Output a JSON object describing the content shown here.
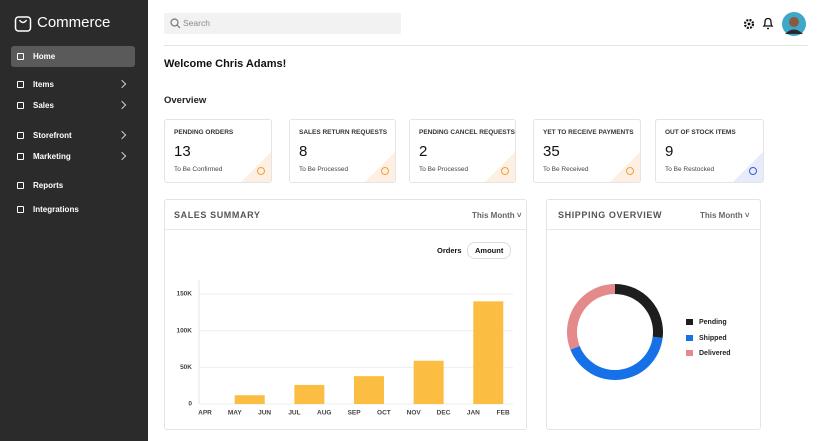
{
  "sidebar": {
    "brand": "Commerce",
    "nav": [
      {
        "label": "Home",
        "active": true
      },
      {
        "label": "Items",
        "has_submenu": true
      },
      {
        "label": "Sales",
        "has_submenu": true
      },
      {
        "label": "Storefront",
        "has_submenu": true
      },
      {
        "label": "Marketing",
        "has_submenu": true
      },
      {
        "label": "Reports"
      },
      {
        "label": "Integrations"
      }
    ]
  },
  "header": {
    "search_placeholder": "Search"
  },
  "welcome": "Welcome Chris Adams!",
  "overview": {
    "title": "Overview",
    "cards": [
      {
        "label": "PENDING ORDERS",
        "value": 13,
        "note": "To Be Confirmed"
      },
      {
        "label": "SALES RETURN REQUESTS",
        "value": 8,
        "note": "To Be Processed"
      },
      {
        "label": "PENDING CANCEL REQUESTS",
        "value": 2,
        "note": "To Be Processed"
      },
      {
        "label": "YET TO RECEIVE PAYMENTS",
        "value": 35,
        "note": "To Be Received"
      },
      {
        "label": "OUT OF STOCK ITEMS",
        "value": 9,
        "note": "To Be Restocked"
      }
    ]
  },
  "sales_summary": {
    "title": "SALES SUMMARY",
    "period": "This Month",
    "toggles": [
      "Orders",
      "Amount"
    ],
    "chart_data": {
      "type": "bar",
      "categories": [
        "APR",
        "MAY",
        "JUN",
        "JUL",
        "AUG",
        "SEP",
        "OCT",
        "NOV",
        "DEC",
        "JAN",
        "FEB"
      ],
      "values": [
        null,
        12000,
        null,
        26000,
        null,
        38000,
        null,
        59000,
        null,
        140000,
        null
      ],
      "color": "#fbbd42",
      "ylim": [
        0,
        150000
      ],
      "yticks": [
        0,
        {
          "value": 50000,
          "label": "50K"
        },
        {
          "value": 100000,
          "label": "100K"
        },
        {
          "value": 150000,
          "label": "150K"
        }
      ],
      "grid": true
    }
  },
  "shipping_overview": {
    "title": "SHIPPING OVERVIEW",
    "period": "This Month",
    "chart_data": {
      "type": "donut",
      "categories": [
        "Pending",
        "Shipped",
        "Delivered"
      ],
      "values": [
        27,
        42,
        31
      ],
      "colors": [
        "#1e1e1e",
        "#1670e8",
        "#e48a8a"
      ]
    }
  }
}
